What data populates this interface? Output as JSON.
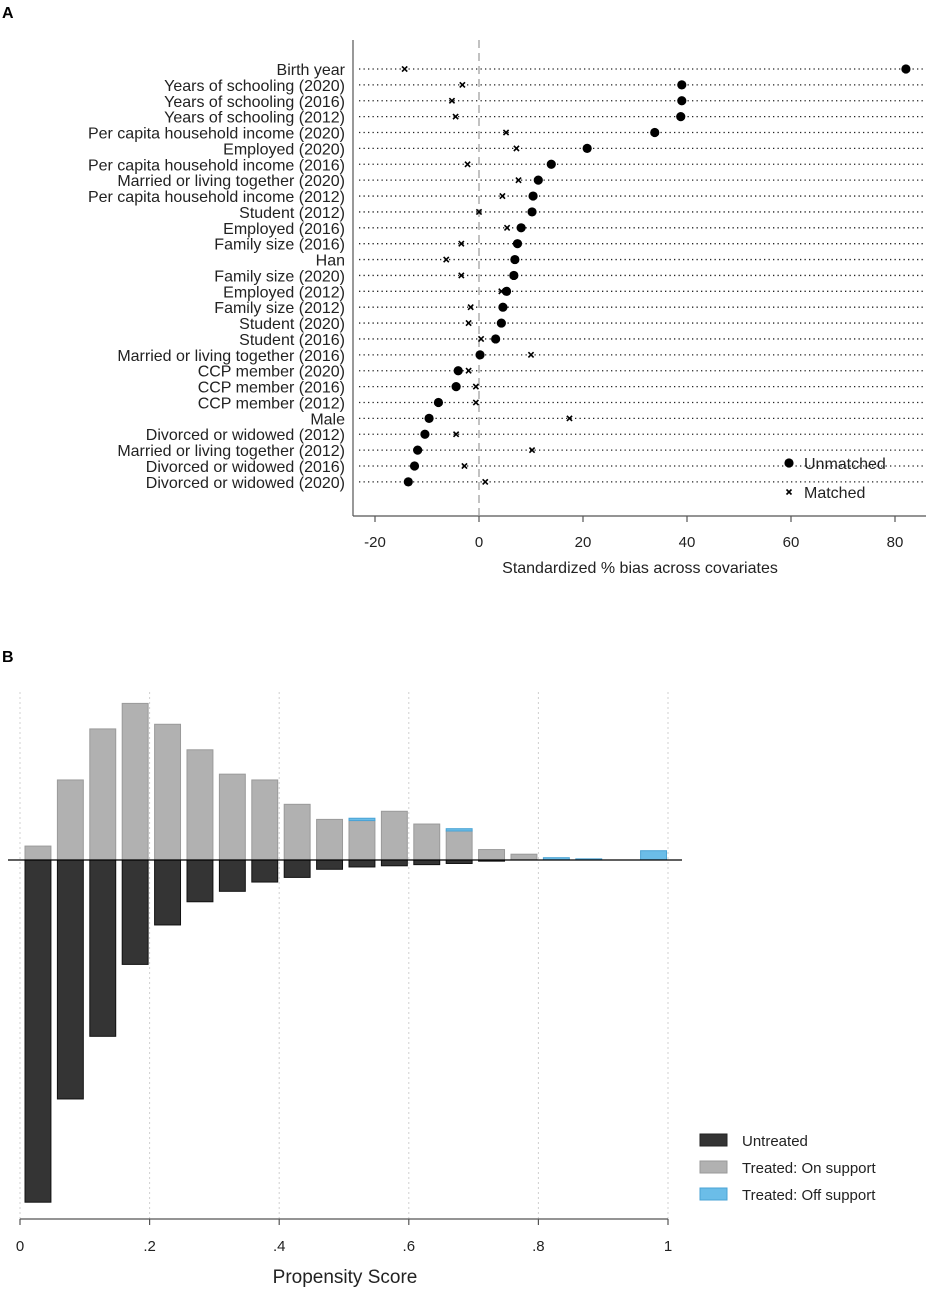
{
  "chart_data": [
    {
      "panel": "A",
      "type": "scatter",
      "title": "",
      "xlabel": "Standardized % bias across covariates",
      "xlim": [
        -24,
        86
      ],
      "xticks": [
        -20,
        0,
        20,
        40,
        60,
        80
      ],
      "xtick_labels": [
        "-20",
        "0",
        "20",
        "40",
        "60",
        "80"
      ],
      "legend": [
        "Unmatched",
        "Matched"
      ],
      "legend_position": "bottom-right",
      "series": [
        {
          "name": "Unmatched",
          "marker": "dot"
        },
        {
          "name": "Matched",
          "marker": "x"
        }
      ],
      "covariates": [
        {
          "label": "Birth year",
          "unmatched": 82.1,
          "matched": -14.3
        },
        {
          "label": "Years of schooling (2020)",
          "unmatched": 39.0,
          "matched": -3.2
        },
        {
          "label": "Years of schooling (2016)",
          "unmatched": 39.0,
          "matched": -5.2
        },
        {
          "label": "Years of schooling (2012)",
          "unmatched": 38.8,
          "matched": -4.5
        },
        {
          "label": "Per capita household income (2020)",
          "unmatched": 33.8,
          "matched": 5.2
        },
        {
          "label": "Employed (2020)",
          "unmatched": 20.8,
          "matched": 7.2
        },
        {
          "label": "Per capita household income (2016)",
          "unmatched": 13.9,
          "matched": -2.2
        },
        {
          "label": "Married or living together (2020)",
          "unmatched": 11.4,
          "matched": 7.6
        },
        {
          "label": "Per capita household income (2012)",
          "unmatched": 10.4,
          "matched": 4.5
        },
        {
          "label": "Student (2012)",
          "unmatched": 10.2,
          "matched": 0.0
        },
        {
          "label": "Employed (2016)",
          "unmatched": 8.1,
          "matched": 5.4
        },
        {
          "label": "Family size (2016)",
          "unmatched": 7.4,
          "matched": -3.4
        },
        {
          "label": "Han",
          "unmatched": 6.9,
          "matched": -6.3
        },
        {
          "label": "Family size (2020)",
          "unmatched": 6.7,
          "matched": -3.4
        },
        {
          "label": "Employed (2012)",
          "unmatched": 5.3,
          "matched": 4.3
        },
        {
          "label": "Family size (2012)",
          "unmatched": 4.6,
          "matched": -1.6
        },
        {
          "label": "Student (2020)",
          "unmatched": 4.3,
          "matched": -2.0
        },
        {
          "label": "Student (2016)",
          "unmatched": 3.2,
          "matched": 0.4
        },
        {
          "label": "Married or living together (2016)",
          "unmatched": 0.2,
          "matched": 10.0
        },
        {
          "label": "CCP member (2020)",
          "unmatched": -4.0,
          "matched": -2.0
        },
        {
          "label": "CCP member (2016)",
          "unmatched": -4.4,
          "matched": -0.6
        },
        {
          "label": "CCP member (2012)",
          "unmatched": -7.8,
          "matched": -0.6
        },
        {
          "label": "Male",
          "unmatched": -9.6,
          "matched": 17.4
        },
        {
          "label": "Divorced or widowed (2012)",
          "unmatched": -10.4,
          "matched": -4.4
        },
        {
          "label": "Married or living together (2012)",
          "unmatched": -11.8,
          "matched": 10.2
        },
        {
          "label": "Divorced or widowed (2016)",
          "unmatched": -12.4,
          "matched": -2.8
        },
        {
          "label": "Divorced or widowed (2020)",
          "unmatched": -13.6,
          "matched": 1.2
        }
      ]
    },
    {
      "panel": "B",
      "type": "bar",
      "title": "",
      "xlabel": "Propensity Score",
      "xlim": [
        0,
        1
      ],
      "xticks": [
        0,
        0.2,
        0.4,
        0.6,
        0.8,
        1
      ],
      "xtick_labels": [
        "0",
        ".2",
        ".4",
        ".6",
        ".8",
        "1"
      ],
      "ylim": [
        -30,
        14
      ],
      "bin_width": 0.04,
      "legend_position": "bottom-right",
      "legend": [
        "Untreated",
        "Treated: On support",
        "Treated: Off support"
      ],
      "colors": {
        "untreated": "#343434",
        "on_support": "#b1b1b1",
        "off_support": "#6bbde8"
      },
      "bins": [
        {
          "start": 0.0,
          "on": 1.2,
          "off": 0.0,
          "untreated": 29.5
        },
        {
          "start": 0.05,
          "on": 6.9,
          "off": 0.0,
          "untreated": 20.6
        },
        {
          "start": 0.1,
          "on": 11.3,
          "off": 0.0,
          "untreated": 15.2
        },
        {
          "start": 0.15,
          "on": 13.5,
          "off": 0.0,
          "untreated": 9.0
        },
        {
          "start": 0.2,
          "on": 11.7,
          "off": 0.0,
          "untreated": 5.6
        },
        {
          "start": 0.25,
          "on": 9.5,
          "off": 0.0,
          "untreated": 3.6
        },
        {
          "start": 0.3,
          "on": 7.4,
          "off": 0.0,
          "untreated": 2.7
        },
        {
          "start": 0.35,
          "on": 6.9,
          "off": 0.0,
          "untreated": 1.9
        },
        {
          "start": 0.4,
          "on": 4.8,
          "off": 0.0,
          "untreated": 1.5
        },
        {
          "start": 0.45,
          "on": 3.5,
          "off": 0.0,
          "untreated": 0.8
        },
        {
          "start": 0.5,
          "on": 3.4,
          "off": 0.2,
          "untreated": 0.6
        },
        {
          "start": 0.55,
          "on": 4.2,
          "off": 0.0,
          "untreated": 0.5
        },
        {
          "start": 0.6,
          "on": 3.1,
          "off": 0.0,
          "untreated": 0.4
        },
        {
          "start": 0.65,
          "on": 2.5,
          "off": 0.2,
          "untreated": 0.3
        },
        {
          "start": 0.7,
          "on": 0.9,
          "off": 0.0,
          "untreated": 0.1
        },
        {
          "start": 0.75,
          "on": 0.5,
          "off": 0.0,
          "untreated": 0.0
        },
        {
          "start": 0.8,
          "on": 0.0,
          "off": 0.2,
          "untreated": 0.0
        },
        {
          "start": 0.85,
          "on": 0.0,
          "off": 0.1,
          "untreated": 0.0
        },
        {
          "start": 0.95,
          "on": 0.0,
          "off": 0.8,
          "untreated": 0.0
        }
      ]
    }
  ]
}
